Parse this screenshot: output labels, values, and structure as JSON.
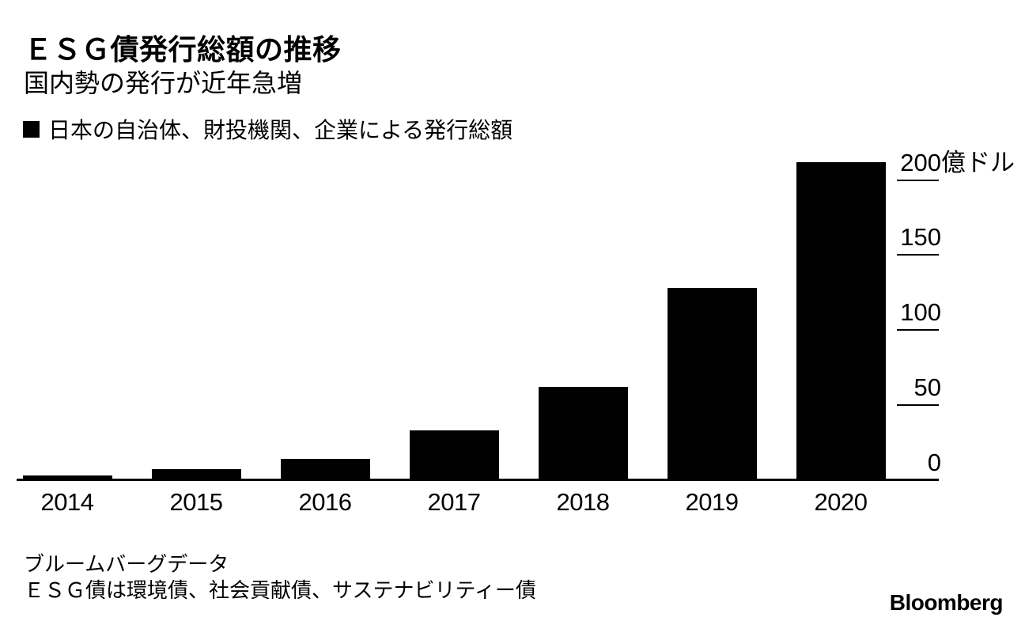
{
  "page": {
    "background_color": "#ffffff",
    "text_color": "#000000"
  },
  "header": {
    "title": "ＥＳＧ債発行総額の推移",
    "subtitle": "国内勢の発行が近年急増"
  },
  "legend": {
    "swatch_color": "#000000",
    "label": "日本の自治体、財投機関、企業による発行総額"
  },
  "chart_data": {
    "type": "bar",
    "title": "ＥＳＧ債発行総額の推移",
    "subtitle": "国内勢の発行が近年急増",
    "series_name": "日本の自治体、財投機関、企業による発行総額",
    "categories": [
      "2014",
      "2015",
      "2016",
      "2017",
      "2018",
      "2019",
      "2020"
    ],
    "values": [
      3.3,
      7.6,
      14,
      33,
      62,
      128,
      212
    ],
    "unit_label": "億ドル",
    "y_axis": {
      "ticks": [
        0,
        50,
        100,
        150,
        200
      ],
      "top_tick_label": "200億ドル",
      "side": "right",
      "lim": [
        0,
        215
      ]
    },
    "grid": false,
    "bar_color": "#000000",
    "legend_position": "top-left"
  },
  "footer": {
    "source": "ブルームバーグデータ",
    "note": "ＥＳＧ債は環境債、社会貢献債、サステナビリティー債",
    "brand": "Bloomberg"
  }
}
